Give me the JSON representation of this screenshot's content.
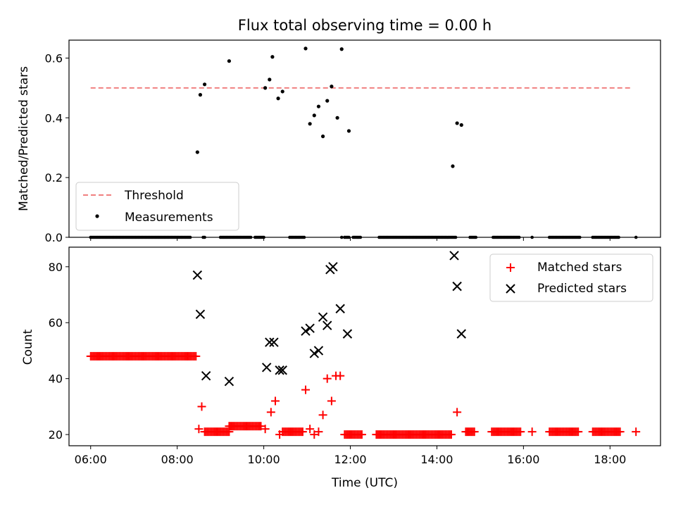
{
  "chart_data": [
    {
      "type": "scatter",
      "title": "Flux total observing time = 0.00 h",
      "xlabel": "",
      "ylabel": "Matched/Predicted stars",
      "xlim": [
        "05:30",
        "19:10"
      ],
      "ylim": [
        0,
        0.66
      ],
      "yticks": [
        "0.0",
        "0.2",
        "0.4",
        "0.6"
      ],
      "x_tick_labels_shown": false,
      "legend_position": "lower-left",
      "threshold": {
        "name": "Threshold",
        "y": 0.5,
        "x_range": [
          "06:00",
          "18:30"
        ],
        "color": "#f08080",
        "style": "dashed"
      },
      "series": [
        {
          "name": "Measurements",
          "color": "#000000",
          "marker": "dot",
          "points": [
            [
              "08:28",
              0.285
            ],
            [
              "08:32",
              0.477
            ],
            [
              "08:38",
              0.512
            ],
            [
              "09:12",
              0.59
            ],
            [
              "10:02",
              0.5
            ],
            [
              "10:08",
              0.528
            ],
            [
              "10:12",
              0.604
            ],
            [
              "10:20",
              0.465
            ],
            [
              "10:26",
              0.488
            ],
            [
              "10:58",
              0.632
            ],
            [
              "11:04",
              0.38
            ],
            [
              "11:10",
              0.408
            ],
            [
              "11:16",
              0.438
            ],
            [
              "11:22",
              0.338
            ],
            [
              "11:28",
              0.457
            ],
            [
              "11:34",
              0.505
            ],
            [
              "11:42",
              0.4
            ],
            [
              "11:48",
              0.63
            ],
            [
              "11:58",
              0.356
            ],
            [
              "14:22",
              0.238
            ],
            [
              "14:28",
              0.382
            ],
            [
              "14:34",
              0.376
            ]
          ],
          "zero_segments": [
            [
              "06:00",
              "08:18"
            ],
            [
              "08:36",
              "08:38"
            ],
            [
              "09:00",
              "09:42"
            ],
            [
              "09:48",
              "10:00"
            ],
            [
              "10:36",
              "10:56"
            ],
            [
              "11:48",
              "11:48"
            ],
            [
              "11:52",
              "11:58"
            ],
            [
              "12:04",
              "12:14"
            ],
            [
              "12:40",
              "14:26"
            ],
            [
              "14:46",
              "14:54"
            ],
            [
              "15:18",
              "15:54"
            ],
            [
              "16:12",
              "16:12"
            ],
            [
              "16:36",
              "17:18"
            ],
            [
              "17:36",
              "18:12"
            ],
            [
              "18:36",
              "18:36"
            ]
          ]
        }
      ]
    },
    {
      "type": "scatter",
      "title": "",
      "xlabel": "Time (UTC)",
      "ylabel": "Count",
      "xlim": [
        "05:30",
        "19:10"
      ],
      "ylim": [
        16,
        87
      ],
      "xticks": [
        "06:00",
        "08:00",
        "10:00",
        "12:00",
        "14:00",
        "16:00",
        "18:00"
      ],
      "yticks": [
        "20",
        "40",
        "60",
        "80"
      ],
      "legend_position": "top-right",
      "series": [
        {
          "name": "Matched stars",
          "color": "#ff0000",
          "marker": "plus",
          "points": [
            [
              "08:34",
              30
            ],
            [
              "10:10",
              28
            ],
            [
              "10:16",
              32
            ],
            [
              "10:58",
              36
            ],
            [
              "11:04",
              22
            ],
            [
              "11:22",
              27
            ],
            [
              "11:28",
              40
            ],
            [
              "11:34",
              32
            ],
            [
              "11:40",
              41
            ],
            [
              "11:46",
              41
            ],
            [
              "14:28",
              28
            ]
          ],
          "runs": [
            {
              "value": 48,
              "start": "06:00",
              "end": "08:26"
            },
            {
              "value": 22,
              "start": "08:30",
              "end": "08:30"
            },
            {
              "value": 21,
              "start": "08:38",
              "end": "09:12"
            },
            {
              "value": 23,
              "start": "09:12",
              "end": "09:56"
            },
            {
              "value": 22,
              "start": "10:02",
              "end": "10:02"
            },
            {
              "value": 20,
              "start": "10:22",
              "end": "10:22"
            },
            {
              "value": 21,
              "start": "10:26",
              "end": "10:54"
            },
            {
              "value": 20,
              "start": "11:10",
              "end": "11:10"
            },
            {
              "value": 21,
              "start": "11:16",
              "end": "11:16"
            },
            {
              "value": 20,
              "start": "11:52",
              "end": "12:16"
            },
            {
              "value": 20,
              "start": "12:36",
              "end": "14:20"
            },
            {
              "value": 21,
              "start": "14:40",
              "end": "14:52"
            },
            {
              "value": 21,
              "start": "15:16",
              "end": "15:56"
            },
            {
              "value": 21,
              "start": "16:12",
              "end": "16:12"
            },
            {
              "value": 21,
              "start": "16:36",
              "end": "17:16"
            },
            {
              "value": 21,
              "start": "17:36",
              "end": "18:14"
            },
            {
              "value": 21,
              "start": "18:36",
              "end": "18:36"
            }
          ]
        },
        {
          "name": "Predicted stars",
          "color": "#000000",
          "marker": "x",
          "points": [
            [
              "08:28",
              77
            ],
            [
              "08:32",
              63
            ],
            [
              "08:40",
              41
            ],
            [
              "09:12",
              39
            ],
            [
              "10:04",
              44
            ],
            [
              "10:08",
              53
            ],
            [
              "10:14",
              53
            ],
            [
              "10:22",
              43
            ],
            [
              "10:26",
              43
            ],
            [
              "10:58",
              57
            ],
            [
              "11:04",
              58
            ],
            [
              "11:10",
              49
            ],
            [
              "11:16",
              50
            ],
            [
              "11:22",
              62
            ],
            [
              "11:28",
              59
            ],
            [
              "11:32",
              79
            ],
            [
              "11:36",
              80
            ],
            [
              "11:46",
              65
            ],
            [
              "11:56",
              56
            ],
            [
              "14:24",
              84
            ],
            [
              "14:28",
              73
            ],
            [
              "14:34",
              56
            ]
          ]
        }
      ]
    }
  ]
}
